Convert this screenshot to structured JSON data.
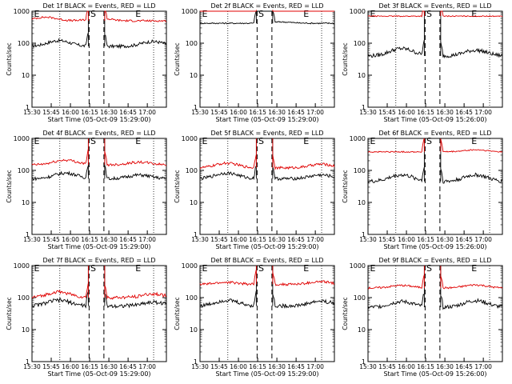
{
  "chart_data": [
    {
      "type": "line",
      "title": "Det 1f BLACK = Events, RED = LLD",
      "xlabel": "Start Time (05-Oct-09 15:29:00)",
      "ylabel": "Counts/sec",
      "y_scale": "log",
      "ylim": [
        1,
        1000
      ],
      "x_ticks": [
        "15:30",
        "15:45",
        "16:00",
        "16:15",
        "16:30",
        "16:45",
        "17:00"
      ],
      "y_ticks": [
        "1",
        "10",
        "100",
        "1000"
      ],
      "flags": [
        "E",
        "S",
        "E"
      ],
      "series": [
        {
          "color": "#000000",
          "base": 80,
          "bumps": [
            [
              0.3,
              1.5,
              0.2
            ],
            [
              0.6,
              1.4,
              0.9
            ]
          ],
          "noise": 0.05
        },
        {
          "color": "#e00000",
          "base": 500,
          "bumps": [
            [
              0.25,
              1.3,
              0.1
            ],
            [
              0.6,
              1.2,
              0.5
            ]
          ],
          "noise": 0.03
        }
      ]
    },
    {
      "type": "line",
      "title": "Det 2f BLACK = Events, RED = LLD",
      "xlabel": "Start Time (05-Oct-09 15:29:00)",
      "ylabel": "Counts/sec",
      "y_scale": "log",
      "ylim": [
        1,
        1000
      ],
      "x_ticks": [
        "15:30",
        "15:45",
        "16:00",
        "16:15",
        "16:30",
        "16:45",
        "17:00"
      ],
      "y_ticks": [
        "1",
        "10",
        "100",
        "1000"
      ],
      "flags": [
        "E",
        "S",
        "E"
      ],
      "series": [
        {
          "color": "#000000",
          "base": 420,
          "bumps": [
            [
              0.5,
              1.1,
              0.6
            ]
          ],
          "noise": 0.02
        },
        {
          "color": "#e00000",
          "base": 1100,
          "bumps": [
            [
              0.4,
              1.05,
              0.3
            ]
          ],
          "noise": 0.015
        }
      ]
    },
    {
      "type": "line",
      "title": "Det 3f BLACK = Events, RED = LLD",
      "xlabel": "Start Time (05-Oct-09 15:26:00)",
      "ylabel": "Counts/sec",
      "y_scale": "log",
      "ylim": [
        1,
        1000
      ],
      "x_ticks": [
        "15:30",
        "15:45",
        "16:00",
        "16:15",
        "16:30",
        "16:45",
        "17:00"
      ],
      "y_ticks": [
        "1",
        "10",
        "100",
        "1000"
      ],
      "flags": [
        "E",
        "S",
        "E"
      ],
      "series": [
        {
          "color": "#000000",
          "base": 40,
          "bumps": [
            [
              0.35,
              1.7,
              0.25
            ],
            [
              0.6,
              1.5,
              0.8
            ]
          ],
          "noise": 0.06
        },
        {
          "color": "#e00000",
          "base": 700,
          "bumps": [],
          "noise": 0.015
        }
      ]
    },
    {
      "type": "line",
      "title": "Det 4f BLACK = Events, RED = LLD",
      "xlabel": "Start Time (05-Oct-09 15:29:00)",
      "ylabel": "Counts/sec",
      "y_scale": "log",
      "ylim": [
        1,
        1000
      ],
      "x_ticks": [
        "15:30",
        "15:45",
        "16:00",
        "16:15",
        "16:30",
        "16:45",
        "17:00"
      ],
      "y_ticks": [
        "1",
        "10",
        "100",
        "1000"
      ],
      "flags": [
        "E",
        "S",
        "E"
      ],
      "series": [
        {
          "color": "#000000",
          "base": 55,
          "bumps": [
            [
              0.35,
              1.5,
              0.25
            ],
            [
              0.6,
              1.3,
              0.8
            ]
          ],
          "noise": 0.05
        },
        {
          "color": "#e00000",
          "base": 150,
          "bumps": [
            [
              0.35,
              1.4,
              0.25
            ],
            [
              0.6,
              1.2,
              0.8
            ]
          ],
          "noise": 0.04
        }
      ]
    },
    {
      "type": "line",
      "title": "Det 5f BLACK = Events, RED = LLD",
      "xlabel": "Start Time (05-Oct-09 15:29:00)",
      "ylabel": "Counts/sec",
      "y_scale": "log",
      "ylim": [
        1,
        1000
      ],
      "x_ticks": [
        "15:30",
        "15:45",
        "16:00",
        "16:15",
        "16:30",
        "16:45",
        "17:00"
      ],
      "y_ticks": [
        "1",
        "10",
        "100",
        "1000"
      ],
      "flags": [
        "E",
        "S",
        "E"
      ],
      "series": [
        {
          "color": "#000000",
          "base": 55,
          "bumps": [
            [
              0.3,
              1.5,
              0.2
            ],
            [
              0.6,
              1.3,
              0.9
            ]
          ],
          "noise": 0.05
        },
        {
          "color": "#e00000",
          "base": 120,
          "bumps": [
            [
              0.3,
              1.4,
              0.2
            ],
            [
              0.6,
              1.3,
              0.9
            ]
          ],
          "noise": 0.04
        }
      ]
    },
    {
      "type": "line",
      "title": "Det 6f BLACK = Events, RED = LLD",
      "xlabel": "Start Time (05-Oct-09 15:26:00)",
      "ylabel": "Counts/sec",
      "y_scale": "log",
      "ylim": [
        1,
        1000
      ],
      "x_ticks": [
        "15:30",
        "15:45",
        "16:00",
        "16:15",
        "16:30",
        "16:45",
        "17:00"
      ],
      "y_ticks": [
        "1",
        "10",
        "100",
        "1000"
      ],
      "flags": [
        "E",
        "S",
        "E"
      ],
      "series": [
        {
          "color": "#000000",
          "base": 45,
          "bumps": [
            [
              0.35,
              1.6,
              0.25
            ],
            [
              0.6,
              1.6,
              0.8
            ]
          ],
          "noise": 0.06
        },
        {
          "color": "#e00000",
          "base": 380,
          "bumps": [
            [
              0.6,
              1.15,
              0.8
            ]
          ],
          "noise": 0.02
        }
      ]
    },
    {
      "type": "line",
      "title": "Det 7f BLACK = Events, RED = LLD",
      "xlabel": "Start Time (05-Oct-09 15:29:00)",
      "ylabel": "Counts/sec",
      "y_scale": "log",
      "ylim": [
        1,
        1000
      ],
      "x_ticks": [
        "15:30",
        "15:45",
        "16:00",
        "16:15",
        "16:30",
        "16:45",
        "17:00"
      ],
      "y_ticks": [
        "1",
        "10",
        "100",
        "1000"
      ],
      "flags": [
        "E",
        "S",
        "E"
      ],
      "series": [
        {
          "color": "#000000",
          "base": 55,
          "bumps": [
            [
              0.3,
              1.5,
              0.2
            ],
            [
              0.6,
              1.3,
              0.9
            ]
          ],
          "noise": 0.06
        },
        {
          "color": "#e00000",
          "base": 100,
          "bumps": [
            [
              0.3,
              1.5,
              0.2
            ],
            [
              0.6,
              1.3,
              0.9
            ]
          ],
          "noise": 0.05
        }
      ]
    },
    {
      "type": "line",
      "title": "Det 8f BLACK = Events, RED = LLD",
      "xlabel": "Start Time (05-Oct-09 15:29:00)",
      "ylabel": "Counts/sec",
      "y_scale": "log",
      "ylim": [
        1,
        1000
      ],
      "x_ticks": [
        "15:30",
        "15:45",
        "16:00",
        "16:15",
        "16:30",
        "16:45",
        "17:00"
      ],
      "y_ticks": [
        "1",
        "10",
        "100",
        "1000"
      ],
      "flags": [
        "E",
        "S",
        "E"
      ],
      "series": [
        {
          "color": "#000000",
          "base": 55,
          "bumps": [
            [
              0.3,
              1.5,
              0.2
            ],
            [
              0.6,
              1.4,
              0.9
            ]
          ],
          "noise": 0.06
        },
        {
          "color": "#e00000",
          "base": 260,
          "bumps": [
            [
              0.3,
              1.15,
              0.2
            ],
            [
              0.6,
              1.2,
              0.9
            ]
          ],
          "noise": 0.04
        }
      ]
    },
    {
      "type": "line",
      "title": "Det 9f BLACK = Events, RED = LLD",
      "xlabel": "Start Time (05-Oct-09 15:26:00)",
      "ylabel": "Counts/sec",
      "y_scale": "log",
      "ylim": [
        1,
        1000
      ],
      "x_ticks": [
        "15:30",
        "15:45",
        "16:00",
        "16:15",
        "16:30",
        "16:45",
        "17:00"
      ],
      "y_ticks": [
        "1",
        "10",
        "100",
        "1000"
      ],
      "flags": [
        "E",
        "S",
        "E"
      ],
      "series": [
        {
          "color": "#000000",
          "base": 50,
          "bumps": [
            [
              0.3,
              1.5,
              0.25
            ],
            [
              0.6,
              1.6,
              0.8
            ]
          ],
          "noise": 0.06
        },
        {
          "color": "#e00000",
          "base": 200,
          "bumps": [
            [
              0.35,
              1.2,
              0.25
            ],
            [
              0.6,
              1.25,
              0.8
            ]
          ],
          "noise": 0.03
        }
      ]
    }
  ]
}
